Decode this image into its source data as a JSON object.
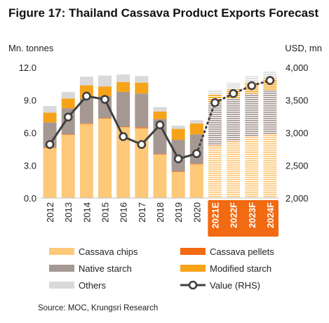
{
  "header": {
    "title": "Figure 17: Thailand Cassava Product Exports Forecast"
  },
  "source": "Source: MOC, Krungsri Research",
  "colors": {
    "chips": "#fdc878",
    "pellets": "#f26a12",
    "native": "#a59892",
    "modified": "#f6a31a",
    "others": "#d9d9d9",
    "value_line": "#404040",
    "forecast_box": "#f26a12"
  },
  "chart_data": {
    "type": "bar",
    "stacked": true,
    "ylabel": "Mn. tonnes",
    "y2label": "USD, mn",
    "ylim": [
      0,
      12
    ],
    "yticks": [
      "0.0",
      "3.0",
      "6.0",
      "9.0",
      "12.0"
    ],
    "y2lim": [
      2000,
      4000
    ],
    "y2ticks": [
      "2,000",
      "2,500",
      "3,000",
      "3,500",
      "4,000"
    ],
    "categories": [
      "2012",
      "2013",
      "2014",
      "2015",
      "2016",
      "2017",
      "2018",
      "2019",
      "2020",
      "2021E",
      "2022F",
      "2023F",
      "2024F"
    ],
    "forecast_categories": [
      "2021E",
      "2022F",
      "2023F",
      "2024F"
    ],
    "series": [
      {
        "name": "Cassava chips",
        "values": [
          4.6,
          5.8,
          6.8,
          7.3,
          6.5,
          6.4,
          4.0,
          2.4,
          3.1,
          4.8,
          5.2,
          5.6,
          5.8
        ]
      },
      {
        "name": "Cassava pellets",
        "values": [
          0.05,
          0.05,
          0.05,
          0.05,
          0.05,
          0.1,
          0.05,
          0.05,
          0.05,
          0.1,
          0.1,
          0.1,
          0.1
        ]
      },
      {
        "name": "Native starch",
        "values": [
          2.3,
          2.4,
          2.3,
          2.0,
          3.2,
          3.1,
          3.2,
          2.9,
          2.7,
          3.8,
          3.8,
          3.9,
          4.0
        ]
      },
      {
        "name": "Modified starch",
        "values": [
          0.9,
          0.9,
          1.2,
          0.9,
          0.9,
          1.0,
          0.7,
          1.0,
          1.0,
          0.8,
          0.9,
          1.0,
          1.1
        ]
      },
      {
        "name": "Others",
        "values": [
          0.6,
          0.6,
          0.8,
          1.0,
          0.7,
          0.6,
          0.4,
          0.3,
          0.3,
          0.4,
          0.6,
          0.6,
          0.6
        ]
      },
      {
        "name": "Value (RHS)",
        "axis": "right",
        "type": "line",
        "values": [
          2820,
          3240,
          3560,
          3510,
          2940,
          2820,
          3120,
          2600,
          2680,
          3460,
          3600,
          3720,
          3800
        ]
      }
    ],
    "legend": {
      "placement": "bottom"
    },
    "grid": false
  }
}
